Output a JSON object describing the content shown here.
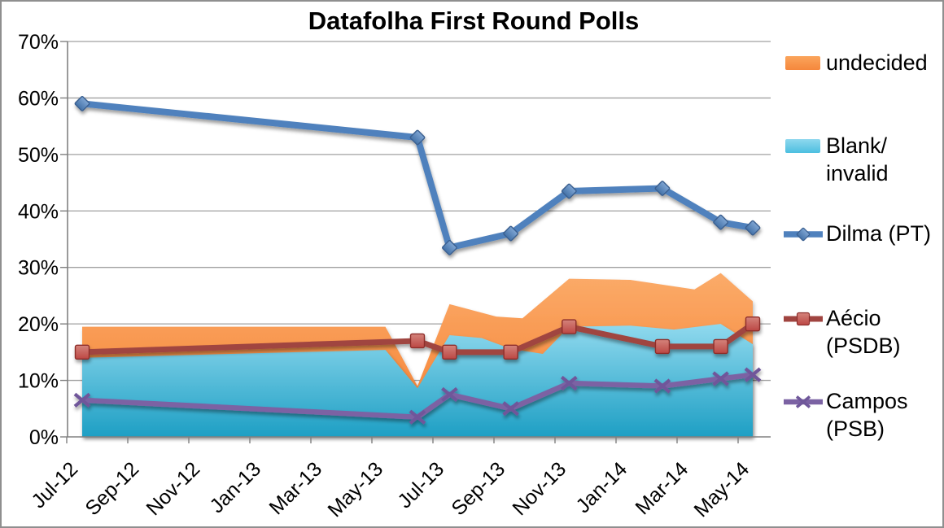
{
  "title": "Datafolha First Round Polls",
  "chart_data": {
    "type": "line+area",
    "title": "Datafolha First Round Polls",
    "x_axis": {
      "tick_labels": [
        "Jul-12",
        "Sep-12",
        "Nov-12",
        "Jan-13",
        "Mar-13",
        "May-13",
        "Jul-13",
        "Sep-13",
        "Nov-13",
        "Jan-14",
        "Mar-14",
        "May-14"
      ],
      "span_months": 23,
      "grid": false
    },
    "y_axis": {
      "tick_labels": [
        "0%",
        "10%",
        "20%",
        "30%",
        "40%",
        "50%",
        "60%",
        "70%"
      ],
      "min": 0,
      "max": 70,
      "step": 10,
      "grid": true
    },
    "poll_months": [
      0,
      11.5,
      12.6,
      14.7,
      16.7,
      19.9,
      21.9,
      23
    ],
    "poll_dates_approx": [
      "Jul-12",
      "Jun-13",
      "Jul-13",
      "Sep-13",
      "Nov-13",
      "Feb-14",
      "Apr-14",
      "May-14"
    ],
    "area_series": [
      {
        "name": "undecided",
        "fill_top": "#FBAB69",
        "fill_bottom": "#F57E2F",
        "points": [
          [
            0,
            19.5
          ],
          [
            10.4,
            19.5
          ],
          [
            11.5,
            9
          ],
          [
            12.6,
            23.5
          ],
          [
            14.2,
            21.3
          ],
          [
            15.1,
            21
          ],
          [
            16.7,
            28
          ],
          [
            18.8,
            27.8
          ],
          [
            21.0,
            26.1
          ],
          [
            21.9,
            29
          ],
          [
            23,
            24
          ]
        ]
      },
      {
        "name": "Blank/invalid",
        "fill_top": "#90D9EE",
        "fill_bottom": "#1E9FC4",
        "points": [
          [
            0,
            14
          ],
          [
            10.4,
            15.4
          ],
          [
            11.5,
            8.6
          ],
          [
            12.6,
            18
          ],
          [
            13.7,
            17.5
          ],
          [
            14.7,
            15.6
          ],
          [
            15.8,
            14.7
          ],
          [
            16.7,
            19.5
          ],
          [
            18.8,
            19.7
          ],
          [
            20.3,
            19
          ],
          [
            21.9,
            20
          ],
          [
            23,
            16.4
          ]
        ]
      }
    ],
    "line_series": [
      {
        "name": "Dilma (PT)",
        "marker": "diamond",
        "line_color": "#4F81BD",
        "marker_fill_light": "#7FA5D3",
        "marker_fill_dark": "#4472A8",
        "marker_stroke": "#3A5F8F",
        "values": [
          59,
          53,
          33.5,
          36,
          43.5,
          44,
          38,
          37
        ]
      },
      {
        "name": "Aécio (PSDB)",
        "marker": "square",
        "line_color": "#A04440",
        "marker_fill_light": "#D4837B",
        "marker_fill_dark": "#BC4744",
        "marker_stroke": "#8E2F2C",
        "values": [
          15,
          17,
          15,
          15,
          19.5,
          16,
          16,
          20
        ]
      },
      {
        "name": "Campos (PSB)",
        "marker": "x",
        "line_color": "#7B62A3",
        "marker_fill_light": "#7B62A3",
        "marker_fill_dark": "#6F579A",
        "marker_stroke": "#6F579A",
        "values": [
          6.5,
          3.5,
          7.5,
          5,
          9.5,
          9,
          10.3,
          11
        ]
      }
    ],
    "legend": {
      "position": "right",
      "items": [
        {
          "id": "undecided",
          "swatch": "area",
          "line1": "undecided",
          "line2": "",
          "color_top": "#FBA55C",
          "color_bottom": "#F5873C"
        },
        {
          "id": "blank-invalid",
          "swatch": "area",
          "line1": "Blank/",
          "line2": "invalid",
          "color_top": "#8FD8EE",
          "color_bottom": "#4CBFE0"
        },
        {
          "id": "dilma",
          "swatch": "line-diamond",
          "line1": "Dilma (PT)",
          "line2": "",
          "color_top": "#7FA5D3",
          "color_bottom": "#4472A8"
        },
        {
          "id": "aecio",
          "swatch": "line-square",
          "line1": "Aécio",
          "line2": "(PSDB)",
          "color_top": "#D4837B",
          "color_bottom": "#BC4744"
        },
        {
          "id": "campos",
          "swatch": "line-x",
          "line1": "Campos",
          "line2": "(PSB)",
          "color_top": "#7B62A3",
          "color_bottom": "#6F579A"
        }
      ]
    },
    "colors": {
      "gridline": "#A0A0A0",
      "axis": "#808080",
      "text": "#000000"
    }
  }
}
